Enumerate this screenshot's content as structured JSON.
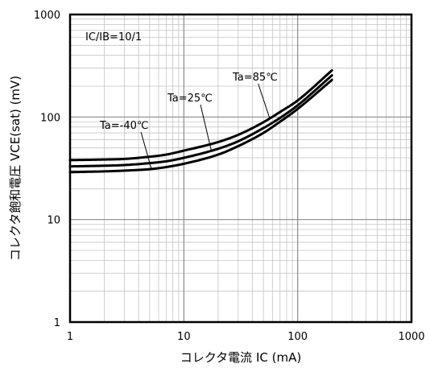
{
  "chart_data": {
    "type": "line",
    "xlabel": "コレクタ電流 IC (mA)",
    "ylabel": "コレクタ飽和電圧 VCE(sat) (mV)",
    "x_scale": "log",
    "y_scale": "log",
    "xlim": [
      1,
      1000
    ],
    "ylim": [
      1,
      1000
    ],
    "grid": true,
    "x_ticks": [
      "1",
      "10",
      "100",
      "1000"
    ],
    "y_ticks": [
      "1",
      "10",
      "100",
      "1000"
    ],
    "condition": "IC/IB=10/1",
    "series": [
      {
        "name": "Ta=-40℃",
        "x": [
          1,
          2,
          3,
          5,
          7,
          10,
          20,
          30,
          50,
          70,
          100,
          200
        ],
        "y": [
          29,
          29.5,
          30,
          31,
          32.5,
          35,
          43,
          52,
          70,
          90,
          120,
          230
        ]
      },
      {
        "name": "Ta=25℃",
        "x": [
          1,
          2,
          3,
          5,
          7,
          10,
          20,
          30,
          50,
          70,
          100,
          200
        ],
        "y": [
          33,
          33.5,
          34,
          35.5,
          37,
          40,
          49,
          58,
          78,
          98,
          130,
          255
        ]
      },
      {
        "name": "Ta=85℃",
        "x": [
          1,
          2,
          3,
          5,
          7,
          10,
          20,
          30,
          50,
          70,
          100,
          200
        ],
        "y": [
          38,
          38.5,
          39,
          41,
          43,
          47,
          57,
          67,
          89,
          112,
          145,
          285
        ]
      }
    ]
  }
}
